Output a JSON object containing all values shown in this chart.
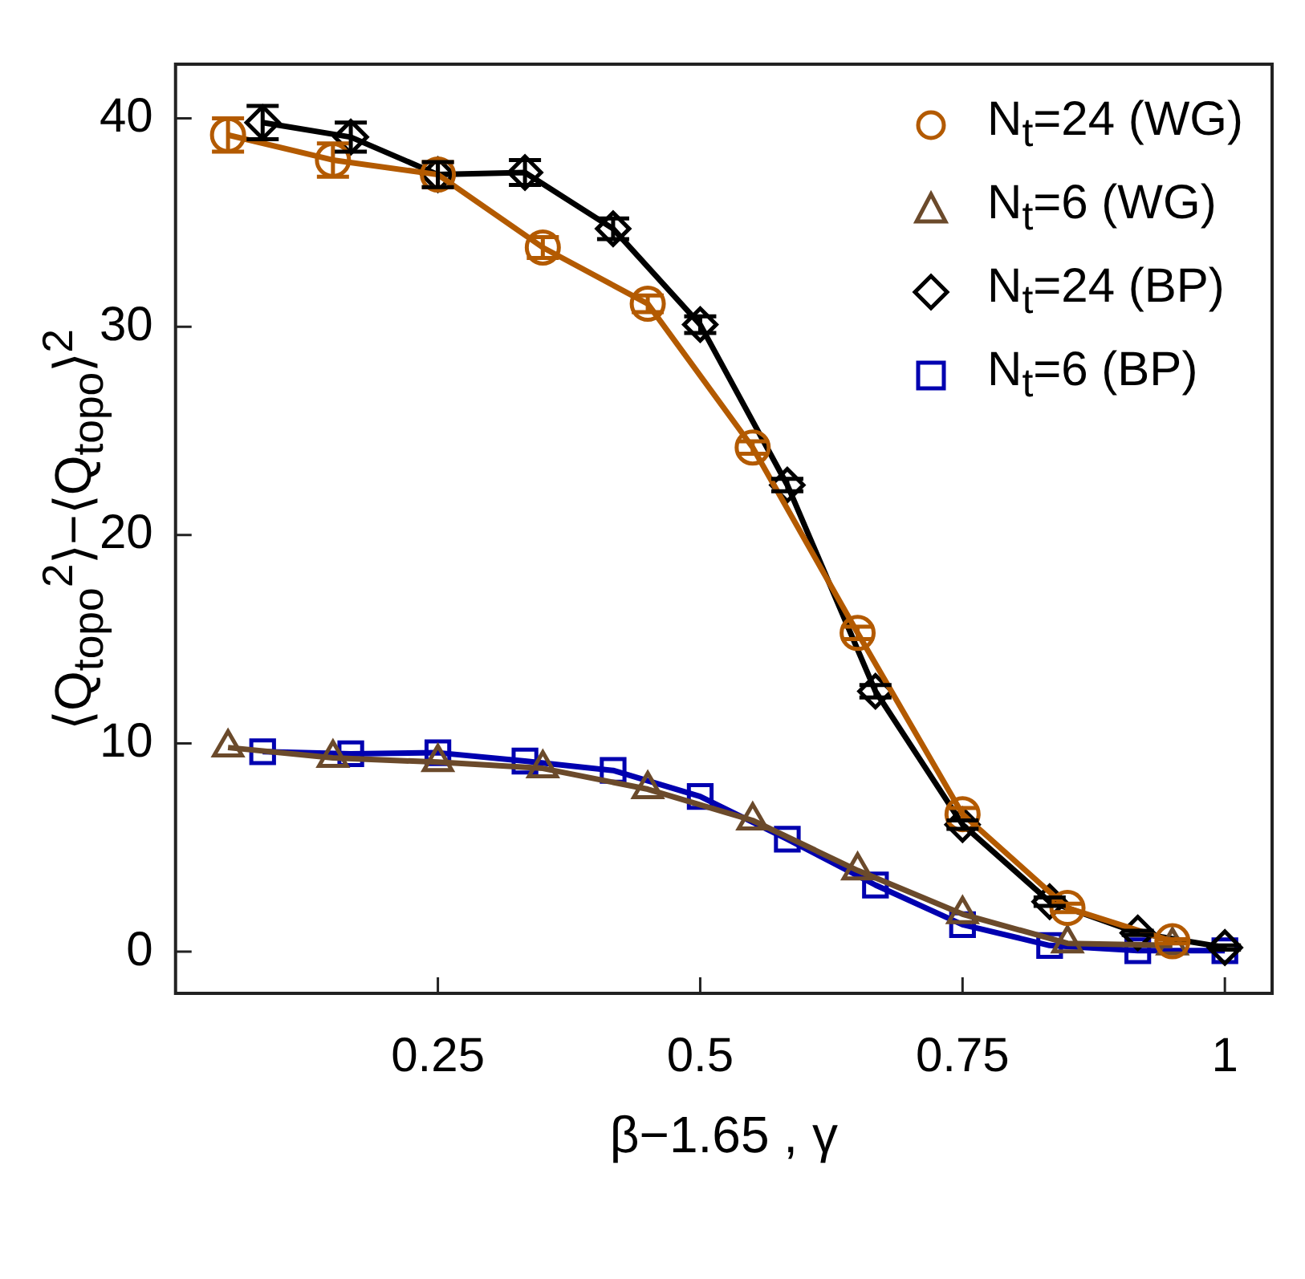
{
  "chart_data": {
    "type": "line",
    "xlabel": "β−1.65 , γ",
    "ylabel": "⟨Q$_{topo}$$^{2}$⟩−⟨Q$_{topo}$⟩$^{2}$",
    "xlim": [
      0,
      1.045
    ],
    "ylim": [
      -2,
      42.6
    ],
    "xticks": [
      0.25,
      0.5,
      0.75,
      1
    ],
    "yticks": [
      0,
      10,
      20,
      30,
      40
    ],
    "grid": false,
    "legend": "top right",
    "line_style": "solid",
    "series": [
      {
        "name": "N$_{t}$=24 (WG)",
        "color": "#b35a00",
        "marker": "circle",
        "x": [
          0.05,
          0.15,
          0.25,
          0.35,
          0.45,
          0.55,
          0.65,
          0.75,
          0.85,
          0.95
        ],
        "values": [
          39.2,
          38.0,
          37.3,
          33.8,
          31.1,
          24.2,
          15.3,
          6.6,
          2.1,
          0.5
        ],
        "errors": [
          0.8,
          0.8,
          0.6,
          0.5,
          0.4,
          0.3,
          0.3,
          0.3,
          0.2,
          0.1
        ]
      },
      {
        "name": "N$_{t}$=6 (WG)",
        "color": "#6b4a2b",
        "marker": "triangle",
        "x": [
          0.05,
          0.15,
          0.25,
          0.35,
          0.45,
          0.55,
          0.65,
          0.75,
          0.85,
          0.95
        ],
        "values": [
          9.8,
          9.3,
          9.1,
          8.8,
          7.8,
          6.3,
          3.9,
          1.8,
          0.4,
          0.3
        ]
      },
      {
        "name": "N$_{t}$=24 (BP)",
        "color": "#000000",
        "marker": "diamond",
        "x": [
          0.083,
          0.167,
          0.25,
          0.333,
          0.417,
          0.5,
          0.583,
          0.667,
          0.75,
          0.833,
          0.917,
          1
        ],
        "values": [
          39.8,
          39.1,
          37.3,
          37.4,
          34.7,
          30.1,
          22.4,
          12.5,
          6.1,
          2.4,
          0.9,
          0.2
        ],
        "errors": [
          0.8,
          0.7,
          0.6,
          0.6,
          0.5,
          0.4,
          0.3,
          0.3,
          0.2,
          0.2,
          0.1,
          0.1
        ]
      },
      {
        "name": "N$_{t}$=6 (BP)",
        "color": "#0000b0",
        "marker": "square",
        "x": [
          0.083,
          0.167,
          0.25,
          0.333,
          0.417,
          0.5,
          0.583,
          0.667,
          0.75,
          0.833,
          0.917,
          1
        ],
        "values": [
          9.6,
          9.5,
          9.55,
          9.15,
          8.7,
          7.45,
          5.4,
          3.2,
          1.3,
          0.3,
          0.05,
          0.05
        ]
      }
    ]
  }
}
